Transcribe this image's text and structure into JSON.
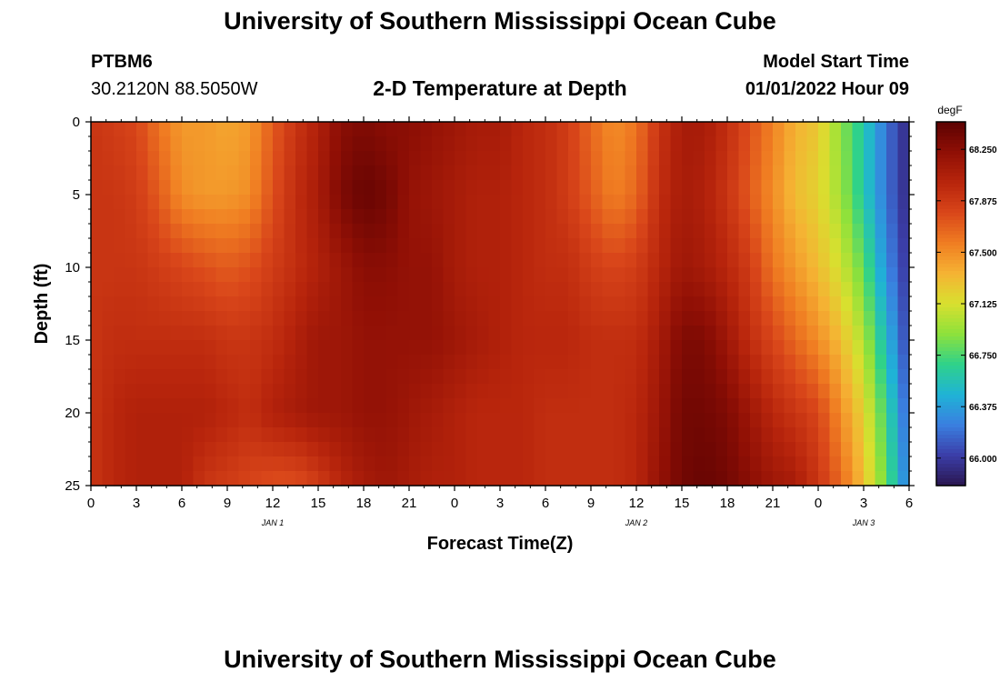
{
  "page": {
    "title": "University of Southern Mississippi Ocean Cube",
    "footer_title": "University of Southern Mississippi Ocean Cube"
  },
  "header": {
    "station": "PTBM6",
    "location": "30.2120N  88.5050W",
    "plot_title": "2-D Temperature at Depth",
    "model_label": "Model Start Time",
    "model_time": "01/01/2022 Hour 09"
  },
  "chart_data": {
    "type": "heatmap",
    "title": "2-D Temperature at Depth",
    "xlabel": "Forecast Time(Z)",
    "ylabel": "Depth (ft)",
    "x_ticks": [
      "0",
      "3",
      "6",
      "9",
      "12",
      "15",
      "18",
      "21",
      "0",
      "3",
      "6",
      "9",
      "12",
      "15",
      "18",
      "21",
      "0",
      "3",
      "6"
    ],
    "x_hours_offset": [
      0,
      3,
      6,
      9,
      12,
      15,
      18,
      21,
      24,
      27,
      30,
      33,
      36,
      39,
      42,
      45,
      48,
      51,
      54
    ],
    "date_labels": [
      {
        "label": "JAN 1",
        "hour": 12
      },
      {
        "label": "JAN 2",
        "hour": 36
      },
      {
        "label": "JAN 3",
        "hour": 51
      }
    ],
    "xlim_hours": [
      0,
      54
    ],
    "y_ticks": [
      0,
      5,
      10,
      15,
      20,
      25
    ],
    "ylim": [
      0,
      25
    ],
    "y_inverted": true,
    "colorbar": {
      "unit": "degF",
      "ticks": [
        "68.250",
        "67.875",
        "67.500",
        "67.125",
        "66.750",
        "66.375",
        "66.000"
      ],
      "tick_values": [
        68.25,
        67.875,
        67.5,
        67.125,
        66.75,
        66.375,
        66.0
      ],
      "range": [
        65.8,
        68.45
      ],
      "colormap": [
        "#2a1650",
        "#3b3ea8",
        "#3a7fe0",
        "#1fb3d6",
        "#2fd28a",
        "#8ee13b",
        "#d8e02f",
        "#f5b333",
        "#f07d22",
        "#d9461a",
        "#b8250c",
        "#8f0f05",
        "#5c0202"
      ]
    },
    "grid_hours": [
      0,
      1.5,
      3,
      4.5,
      6,
      7.5,
      9,
      10.5,
      12,
      13.5,
      15,
      16.5,
      18,
      19.5,
      21,
      22.5,
      24,
      25.5,
      27,
      28.5,
      30,
      31.5,
      33,
      34.5,
      36,
      37.5,
      39,
      40.5,
      42,
      43.5,
      45,
      46.5,
      48,
      49.5,
      51,
      52.5,
      54
    ],
    "grid_depths": [
      0,
      5,
      10,
      15,
      20,
      25
    ],
    "values": [
      [
        67.9,
        67.9,
        67.9,
        67.9,
        67.9,
        67.9
      ],
      [
        67.85,
        67.9,
        67.9,
        67.95,
        68.0,
        68.0
      ],
      [
        67.8,
        67.85,
        67.9,
        67.95,
        68.05,
        68.05
      ],
      [
        67.6,
        67.7,
        67.85,
        67.95,
        68.05,
        68.05
      ],
      [
        67.45,
        67.5,
        67.8,
        67.95,
        68.05,
        68.05
      ],
      [
        67.45,
        67.45,
        67.75,
        67.95,
        68.05,
        67.9
      ],
      [
        67.4,
        67.45,
        67.7,
        67.9,
        68.0,
        67.85
      ],
      [
        67.45,
        67.5,
        67.75,
        67.9,
        67.95,
        67.8
      ],
      [
        67.7,
        67.75,
        67.85,
        67.95,
        68.05,
        67.75
      ],
      [
        67.9,
        67.95,
        67.95,
        68.05,
        68.1,
        67.75
      ],
      [
        68.05,
        68.1,
        68.05,
        68.15,
        68.15,
        67.85
      ],
      [
        68.25,
        68.3,
        68.15,
        68.15,
        68.15,
        68.0
      ],
      [
        68.3,
        68.4,
        68.25,
        68.2,
        68.2,
        68.1
      ],
      [
        68.25,
        68.35,
        68.25,
        68.2,
        68.2,
        68.15
      ],
      [
        68.25,
        68.2,
        68.2,
        68.2,
        68.15,
        68.1
      ],
      [
        68.2,
        68.15,
        68.2,
        68.2,
        68.1,
        68.05
      ],
      [
        68.15,
        68.1,
        68.1,
        68.15,
        68.05,
        68.05
      ],
      [
        68.1,
        68.05,
        68.05,
        68.1,
        68.0,
        68.0
      ],
      [
        68.1,
        68.05,
        68.05,
        68.05,
        68.0,
        68.0
      ],
      [
        68.0,
        68.0,
        68.0,
        68.0,
        68.0,
        68.0
      ],
      [
        67.95,
        67.95,
        67.95,
        68.0,
        67.95,
        67.95
      ],
      [
        67.85,
        67.85,
        67.95,
        68.0,
        67.95,
        67.95
      ],
      [
        67.65,
        67.7,
        67.85,
        67.95,
        67.95,
        67.95
      ],
      [
        67.5,
        67.55,
        67.8,
        67.95,
        67.95,
        67.95
      ],
      [
        67.6,
        67.65,
        67.85,
        67.95,
        68.0,
        68.0
      ],
      [
        67.9,
        67.95,
        68.0,
        68.1,
        68.15,
        68.2
      ],
      [
        68.1,
        68.1,
        68.15,
        68.3,
        68.35,
        68.35
      ],
      [
        68.1,
        68.05,
        68.1,
        68.3,
        68.35,
        68.4
      ],
      [
        67.95,
        67.9,
        68.0,
        68.15,
        68.3,
        68.35
      ],
      [
        67.75,
        67.7,
        67.85,
        67.95,
        68.15,
        68.25
      ],
      [
        67.55,
        67.5,
        67.6,
        67.8,
        68.0,
        68.15
      ],
      [
        67.35,
        67.3,
        67.45,
        67.65,
        67.9,
        68.1
      ],
      [
        67.25,
        67.2,
        67.3,
        67.5,
        67.8,
        67.9
      ],
      [
        66.9,
        66.95,
        67.1,
        67.3,
        67.5,
        67.65
      ],
      [
        66.6,
        66.6,
        66.8,
        67.0,
        67.2,
        67.3
      ],
      [
        66.2,
        66.2,
        66.3,
        66.5,
        66.7,
        66.8
      ],
      [
        65.9,
        65.9,
        65.95,
        66.0,
        66.1,
        66.2
      ]
    ]
  }
}
